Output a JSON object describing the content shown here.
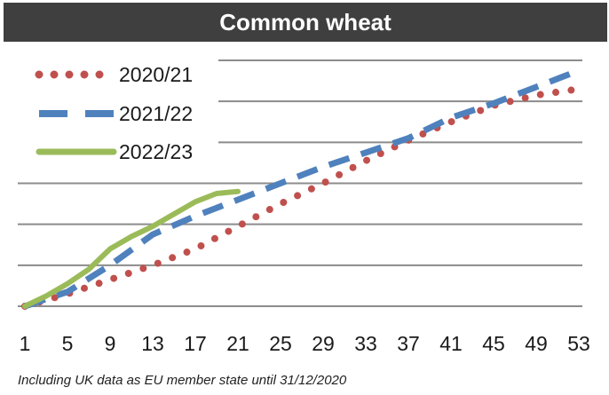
{
  "chart_data": {
    "type": "line",
    "title": "Common wheat",
    "xlabel": "",
    "ylabel": "",
    "x_tick_labels": [
      "1",
      "5",
      "9",
      "13",
      "17",
      "21",
      "25",
      "29",
      "33",
      "37",
      "41",
      "45",
      "49",
      "53"
    ],
    "xlim": [
      1,
      53
    ],
    "ylim": [
      0,
      6
    ],
    "gridlines": true,
    "legend_position": "top-left",
    "series": [
      {
        "name": "2020/21",
        "style": "dotted",
        "color": "#c0504d",
        "x": [
          1,
          5,
          9,
          13,
          17,
          21,
          25,
          29,
          33,
          37,
          41,
          45,
          49,
          53
        ],
        "y": [
          0.0,
          0.3,
          0.65,
          1.0,
          1.4,
          1.95,
          2.5,
          3.0,
          3.55,
          4.05,
          4.5,
          4.9,
          5.15,
          5.3
        ]
      },
      {
        "name": "2021/22",
        "style": "dashed",
        "color": "#4f81bd",
        "x": [
          1,
          5,
          9,
          13,
          17,
          21,
          25,
          29,
          33,
          37,
          41,
          45,
          49,
          53
        ],
        "y": [
          0.0,
          0.35,
          1.0,
          1.75,
          2.2,
          2.6,
          3.0,
          3.4,
          3.75,
          4.1,
          4.6,
          4.95,
          5.35,
          5.75
        ]
      },
      {
        "name": "2022/23",
        "style": "solid",
        "color": "#9bbb59",
        "x": [
          1,
          3,
          5,
          7,
          9,
          11,
          13,
          15,
          17,
          19,
          21
        ],
        "y": [
          0.0,
          0.25,
          0.55,
          0.9,
          1.4,
          1.7,
          1.95,
          2.25,
          2.55,
          2.75,
          2.8
        ]
      }
    ]
  },
  "footnote": "Including UK data as EU member state until 31/12/2020"
}
